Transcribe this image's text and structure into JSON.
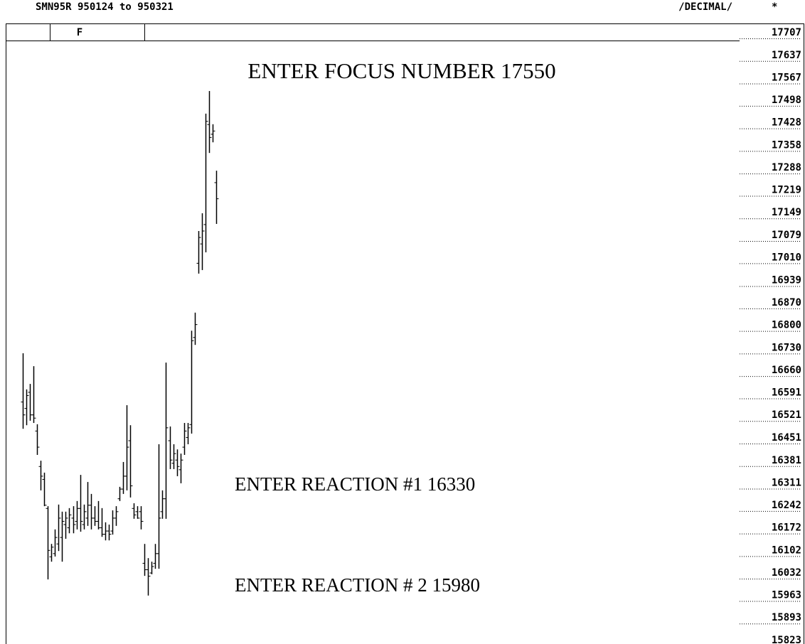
{
  "chart_data": {
    "type": "ohlc",
    "title": "SMN95R   950124 to 950321",
    "mode": "/DECIMAL/",
    "flag": "*",
    "tab": "F",
    "annotations": [
      "ENTER FOCUS NUMBER 17550",
      "ENTER REACTION #1 16330",
      "ENTER REACTION # 2 15980"
    ],
    "color": "#000000",
    "ylim": [
      15823,
      17707
    ],
    "yticks": [
      17707,
      17637,
      17567,
      17498,
      17428,
      17358,
      17288,
      17219,
      17149,
      17079,
      17010,
      16939,
      16870,
      16800,
      16730,
      16660,
      16591,
      16521,
      16451,
      16381,
      16311,
      16242,
      16172,
      16102,
      16032,
      15963,
      15893,
      15823
    ],
    "open": [
      16560,
      16540,
      16590,
      16520,
      16470,
      16360,
      16320,
      16230,
      16080,
      16090,
      16120,
      16140,
      16180,
      16170,
      16200,
      16190,
      16230,
      16180,
      16200,
      16240,
      16200,
      16190,
      16170,
      16150,
      16160,
      16160,
      16200,
      16260,
      16290,
      16330,
      16440,
      16230,
      16220,
      16220,
      16060,
      16040,
      16030,
      16060,
      16090,
      16220,
      16260,
      16440,
      16370,
      16380,
      16350,
      16420,
      16450,
      16490,
      16760,
      16990,
      17050,
      17110,
      17420,
      17390,
      17240
    ],
    "high": [
      16711,
      16599,
      16616,
      16671,
      16491,
      16378,
      16341,
      16237,
      16120,
      16165,
      16242,
      16220,
      16220,
      16231,
      16237,
      16253,
      16334,
      16242,
      16312,
      16275,
      16237,
      16253,
      16231,
      16187,
      16180,
      16224,
      16237,
      16297,
      16374,
      16550,
      16488,
      16246,
      16237,
      16237,
      16120,
      16076,
      16065,
      16120,
      16429,
      16286,
      16682,
      16484,
      16429,
      16413,
      16400,
      16495,
      16495,
      16781,
      16837,
      17090,
      17145,
      17454,
      17524,
      17421,
      17277
    ],
    "low": [
      16477,
      16488,
      16502,
      16495,
      16396,
      16286,
      16237,
      16010,
      16065,
      16081,
      16098,
      16065,
      16136,
      16153,
      16153,
      16165,
      16158,
      16165,
      16176,
      16165,
      16176,
      16165,
      16142,
      16131,
      16131,
      16149,
      16176,
      16253,
      16275,
      16286,
      16264,
      16198,
      16198,
      16165,
      16021,
      15960,
      16026,
      16043,
      16043,
      16198,
      16198,
      16352,
      16352,
      16330,
      16308,
      16396,
      16429,
      16462,
      16737,
      16958,
      16969,
      17024,
      17332,
      17365,
      17112
    ],
    "close": [
      16520,
      16580,
      16520,
      16510,
      16420,
      16330,
      16240,
      16100,
      16110,
      16140,
      16200,
      16190,
      16200,
      16210,
      16180,
      16230,
      16190,
      16220,
      16240,
      16200,
      16190,
      16170,
      16150,
      16160,
      16150,
      16200,
      16220,
      16290,
      16330,
      16420,
      16300,
      16210,
      16200,
      16190,
      16040,
      16020,
      16050,
      16090,
      16200,
      16260,
      16480,
      16380,
      16400,
      16360,
      16380,
      16470,
      16480,
      16750,
      16800,
      17070,
      17090,
      17430,
      17380,
      17400,
      17190
    ]
  }
}
